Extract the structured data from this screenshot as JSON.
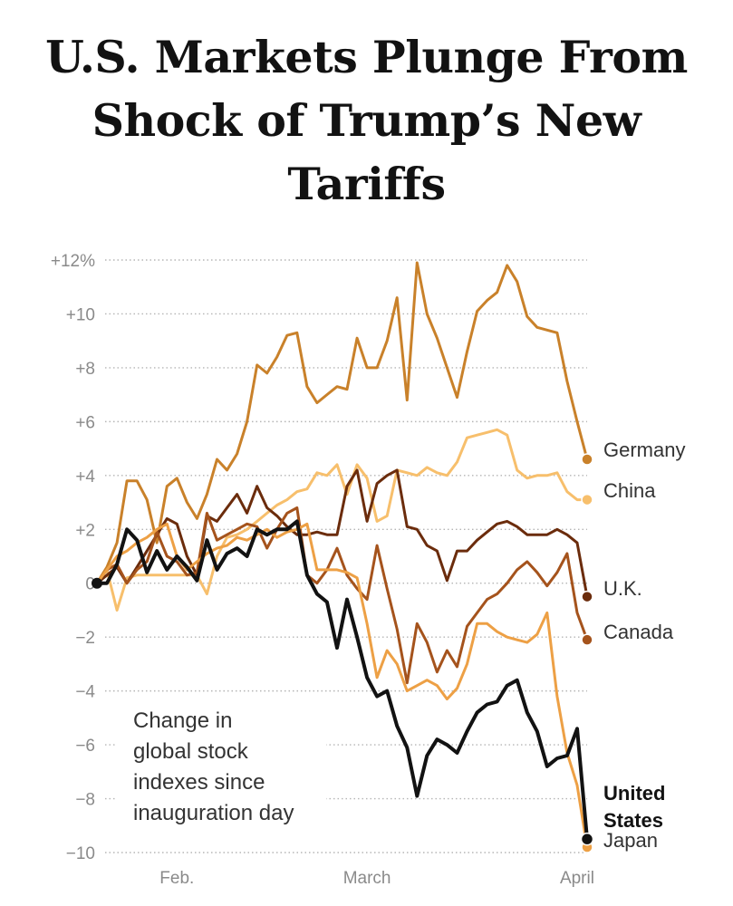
{
  "headline": {
    "line1": "U.S. Markets Plunge From",
    "line2": "Shock of Trump’s New",
    "line3": "Tariffs"
  },
  "chart_data": {
    "type": "line",
    "title": "U.S. Markets Plunge From Shock of Trump’s New Tariffs",
    "annotation": [
      "Change in",
      "global stock",
      "indexes since",
      "inauguration day"
    ],
    "ylim": [
      -10,
      12
    ],
    "y_ticks": [
      {
        "value": 12,
        "label": "+12%"
      },
      {
        "value": 10,
        "label": "+10"
      },
      {
        "value": 8,
        "label": "+8"
      },
      {
        "value": 6,
        "label": "+6"
      },
      {
        "value": 4,
        "label": "+4"
      },
      {
        "value": 2,
        "label": "+2"
      },
      {
        "value": 0,
        "label": "0"
      },
      {
        "value": -2,
        "label": "−2"
      },
      {
        "value": -4,
        "label": "−4"
      },
      {
        "value": -6,
        "label": "−6"
      },
      {
        "value": -8,
        "label": "−8"
      },
      {
        "value": -10,
        "label": "−10"
      }
    ],
    "x_ticks": [
      {
        "index": 8,
        "label": "Feb."
      },
      {
        "index": 27,
        "label": "March"
      },
      {
        "index": 48,
        "label": "April"
      }
    ],
    "x_count": 50,
    "grid": true,
    "series": [
      {
        "name": "Germany",
        "color": "#c9812a",
        "end_label": "Germany",
        "values": [
          0,
          0.6,
          1.5,
          3.8,
          3.8,
          3.1,
          1.5,
          3.6,
          3.9,
          3.0,
          2.4,
          3.3,
          4.6,
          4.2,
          4.8,
          6.0,
          8.1,
          7.8,
          8.4,
          9.2,
          9.3,
          7.3,
          6.7,
          7.0,
          7.3,
          7.2,
          9.1,
          8.0,
          8.0,
          9.0,
          10.6,
          6.8,
          11.9,
          10.0,
          9.1,
          8.0,
          6.9,
          8.6,
          10.1,
          10.5,
          10.8,
          11.8,
          11.2,
          9.9,
          9.5,
          9.4,
          9.3,
          7.5,
          6.0,
          4.6
        ]
      },
      {
        "name": "China",
        "color": "#f7bf6c",
        "end_label": "China",
        "values": [
          0,
          0.5,
          -1.0,
          0.2,
          0.3,
          0.3,
          0.3,
          0.3,
          0.3,
          0.3,
          0.3,
          -0.4,
          1.0,
          1.7,
          1.8,
          2.0,
          2.3,
          2.6,
          2.9,
          3.1,
          3.4,
          3.5,
          4.1,
          4.0,
          4.4,
          3.3,
          4.4,
          3.9,
          2.3,
          2.5,
          4.2,
          4.1,
          4.0,
          4.3,
          4.1,
          4.0,
          4.5,
          5.4,
          5.5,
          5.6,
          5.7,
          5.5,
          4.2,
          3.9,
          4.0,
          4.0,
          4.1,
          3.4,
          3.1,
          3.1
        ]
      },
      {
        "name": "U.K.",
        "color": "#6b2c0c",
        "end_label": "U.K.",
        "values": [
          0,
          0.3,
          0.6,
          0.0,
          0.6,
          1.2,
          1.8,
          2.4,
          2.2,
          1.0,
          0.3,
          2.5,
          2.3,
          2.8,
          3.3,
          2.6,
          3.6,
          2.8,
          2.5,
          2.1,
          1.8,
          1.8,
          1.9,
          1.8,
          1.8,
          3.6,
          4.2,
          2.3,
          3.7,
          4.0,
          4.2,
          2.1,
          2.0,
          1.4,
          1.2,
          0.1,
          1.2,
          1.2,
          1.6,
          1.9,
          2.2,
          2.3,
          2.1,
          1.8,
          1.8,
          1.8,
          2.0,
          1.8,
          1.5,
          -0.5
        ]
      },
      {
        "name": "Canada",
        "color": "#a5531c",
        "end_label": "Canada",
        "values": [
          0,
          0.5,
          0.7,
          0.0,
          0.5,
          0.8,
          1.9,
          1.0,
          0.8,
          0.3,
          0.4,
          2.6,
          1.6,
          1.8,
          2.0,
          2.2,
          2.1,
          1.3,
          2.0,
          2.6,
          2.8,
          0.3,
          0.0,
          0.5,
          1.3,
          0.3,
          -0.2,
          -0.6,
          1.4,
          -0.2,
          -1.7,
          -3.7,
          -1.5,
          -2.2,
          -3.3,
          -2.5,
          -3.1,
          -1.6,
          -1.1,
          -0.6,
          -0.4,
          0.0,
          0.5,
          0.8,
          0.4,
          -0.1,
          0.4,
          1.1,
          -1.1,
          -2.1
        ]
      },
      {
        "name": "Japan",
        "color": "#eda045",
        "end_label": "Japan",
        "values": [
          0,
          0.5,
          1.0,
          1.2,
          1.5,
          1.7,
          2.0,
          2.2,
          1.0,
          0.5,
          0.8,
          1.1,
          1.3,
          1.4,
          1.7,
          1.6,
          1.8,
          2.0,
          1.7,
          1.9,
          2.0,
          2.2,
          0.5,
          0.5,
          0.5,
          0.4,
          0.2,
          -1.5,
          -3.5,
          -2.5,
          -3.0,
          -4.0,
          -3.8,
          -3.6,
          -3.8,
          -4.3,
          -3.9,
          -3.0,
          -1.5,
          -1.5,
          -1.8,
          -2.0,
          -2.1,
          -2.2,
          -1.9,
          -1.1,
          -4.2,
          -6.3,
          -7.5,
          -9.8
        ]
      },
      {
        "name": "United States",
        "color": "#121212",
        "end_label": "United States",
        "bold": true,
        "values": [
          0,
          0.0,
          0.7,
          2.0,
          1.6,
          0.4,
          1.2,
          0.5,
          1.0,
          0.6,
          0.1,
          1.6,
          0.5,
          1.1,
          1.3,
          1.0,
          2.0,
          1.8,
          2.0,
          2.0,
          2.3,
          0.3,
          -0.4,
          -0.7,
          -2.4,
          -0.6,
          -2.0,
          -3.5,
          -4.2,
          -4.0,
          -5.3,
          -6.1,
          -7.9,
          -6.4,
          -5.8,
          -6.0,
          -6.3,
          -5.5,
          -4.8,
          -4.5,
          -4.4,
          -3.8,
          -3.6,
          -4.8,
          -5.5,
          -6.8,
          -6.5,
          -6.4,
          -5.4,
          -9.5
        ]
      }
    ]
  }
}
